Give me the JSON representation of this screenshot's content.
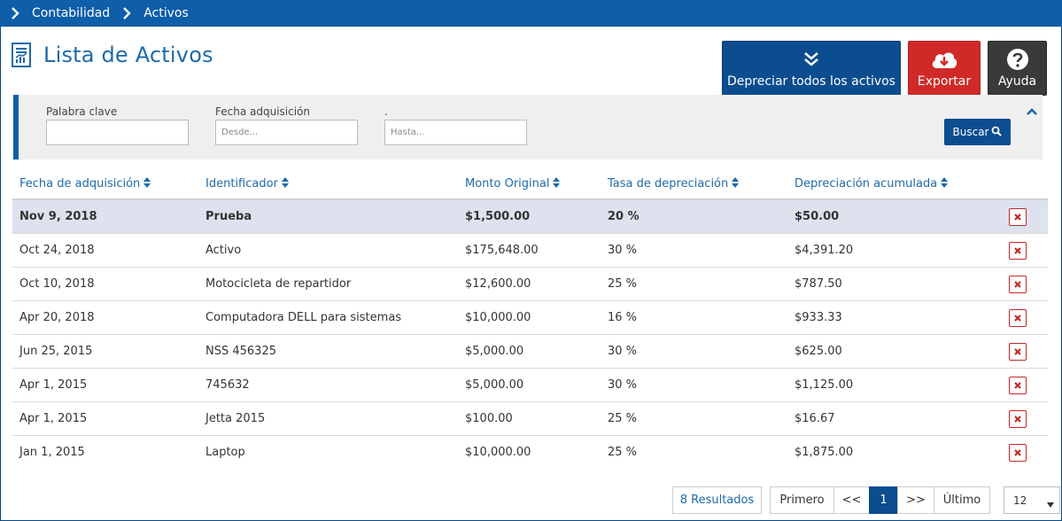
{
  "breadcrumb": {
    "items": [
      "Contabilidad",
      "Activos"
    ]
  },
  "page": {
    "title": "Lista de Activos"
  },
  "actions": {
    "depreciate_label": "Depreciar todos los activos",
    "export_label": "Exportar",
    "help_label": "Ayuda"
  },
  "filters": {
    "keyword_label": "Palabra clave",
    "keyword_value": "",
    "date_label": "Fecha adquisición",
    "from_placeholder": "Desde...",
    "to_label": ".",
    "to_placeholder": "Hasta...",
    "search_label": "Buscar"
  },
  "table": {
    "headers": [
      "Fecha de adquisición",
      "Identificador",
      "Monto Original",
      "Tasa de depreciación",
      "Depreciación acumulada"
    ],
    "rows": [
      {
        "date": "Nov 9, 2018",
        "id": "Prueba",
        "amount": "$1,500.00",
        "rate": "20 %",
        "accum": "$50.00"
      },
      {
        "date": "Oct 24, 2018",
        "id": "Activo",
        "amount": "$175,648.00",
        "rate": "30 %",
        "accum": "$4,391.20"
      },
      {
        "date": "Oct 10, 2018",
        "id": "Motocicleta de repartidor",
        "amount": "$12,600.00",
        "rate": "25 %",
        "accum": "$787.50"
      },
      {
        "date": "Apr 20, 2018",
        "id": "Computadora DELL para sistemas",
        "amount": "$10,000.00",
        "rate": "16 %",
        "accum": "$933.33"
      },
      {
        "date": "Jun 25, 2015",
        "id": "NSS 456325",
        "amount": "$5,000.00",
        "rate": "30 %",
        "accum": "$625.00"
      },
      {
        "date": "Apr 1, 2015",
        "id": "745632",
        "amount": "$5,000.00",
        "rate": "30 %",
        "accum": "$1,125.00"
      },
      {
        "date": "Apr 1, 2015",
        "id": "Jetta 2015",
        "amount": "$100.00",
        "rate": "25 %",
        "accum": "$16.67"
      },
      {
        "date": "Jan 1, 2015",
        "id": "Laptop",
        "amount": "$10,000.00",
        "rate": "25 %",
        "accum": "$1,875.00"
      }
    ]
  },
  "pagination": {
    "results": "8 Resultados",
    "first": "Primero",
    "prev": "<<",
    "current": "1",
    "next": ">>",
    "last": "Último",
    "page_size": "12"
  },
  "colors": {
    "brand_blue": "#0e5ea9",
    "dark_blue": "#0b4d8f",
    "export_red": "#cf2a27",
    "help_dark": "#3a3a3a",
    "selected_row": "#dde2ee"
  }
}
